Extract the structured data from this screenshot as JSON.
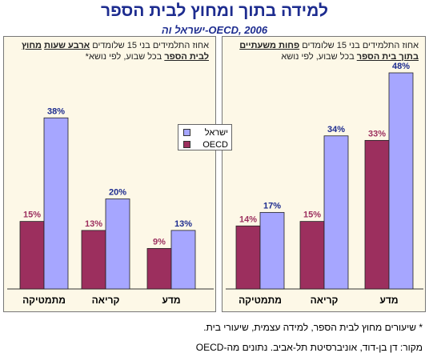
{
  "title": "למידה בתוך ומחוץ לבית הספר",
  "subtitle": "ישראל וה-OECD, 2006",
  "panels": {
    "left": {
      "pre": "אחוז התלמידים בני 15 שלומדים ",
      "bold": "ארבע שעות",
      "mid": " ",
      "bold2": "מחוץ לבית הספר",
      "post": " בכל שבוע, לפי נושא*"
    },
    "right": {
      "pre": "אחוז התלמידים בני 15 שלומדים ",
      "bold": "פחות משעתיים",
      "mid": " ",
      "bold2": "בתוך בית הספר",
      "post": " בכל שבוע, לפי נושא"
    }
  },
  "legend": {
    "israel": "ישראל",
    "oecd": "OECD"
  },
  "colors": {
    "oecd": "#9c2f5e",
    "israel": "#a6a6ff",
    "panel_bg": "#fdf8e7",
    "title": "#1d2c8f"
  },
  "chart_data": [
    {
      "type": "bar",
      "title": "אחוז התלמידים בני 15 שלומדים ארבע שעות מחוץ לבית הספר בכל שבוע, לפי נושא*",
      "categories": [
        "מתמטיקה",
        "קריאה",
        "מדע"
      ],
      "series": [
        {
          "name": "OECD",
          "values": [
            15,
            13,
            9
          ]
        },
        {
          "name": "ישראל",
          "values": [
            38,
            20,
            13
          ]
        }
      ],
      "value_labels": {
        "OECD": [
          "15%",
          "13%",
          "9%"
        ],
        "ישראל": [
          "38%",
          "20%",
          "13%"
        ]
      },
      "ylim": [
        0,
        48
      ]
    },
    {
      "type": "bar",
      "title": "אחוז התלמידים בני 15 שלומדים פחות משעתיים בתוך בית הספר בכל שבוע, לפי נושא",
      "categories": [
        "מתמטיקה",
        "קריאה",
        "מדע"
      ],
      "series": [
        {
          "name": "OECD",
          "values": [
            14,
            15,
            33
          ]
        },
        {
          "name": "ישראל",
          "values": [
            17,
            34,
            48
          ]
        }
      ],
      "value_labels": {
        "OECD": [
          "14%",
          "15%",
          "33%"
        ],
        "ישראל": [
          "17%",
          "34%",
          "48%"
        ]
      },
      "ylim": [
        0,
        48
      ]
    }
  ],
  "footnotes": {
    "note": "* שיעורים מחוץ לבית הספר, למידה עצמית, שיעורי בית.",
    "source": "מקור: דן בן-דוד, אוניברסיטת תל-אביב.  נתונים מה-OECD"
  }
}
